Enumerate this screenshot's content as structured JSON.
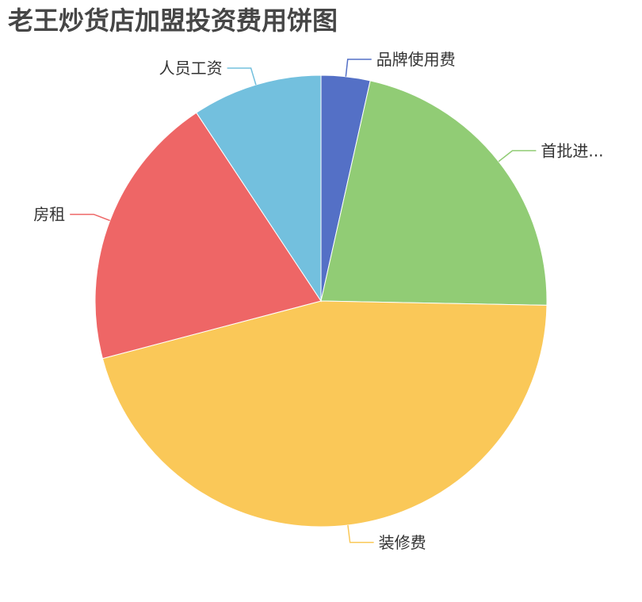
{
  "chart_data": {
    "type": "pie",
    "title": "老王炒货店加盟投资费用饼图",
    "categories": [
      "品牌使用费",
      "首批进...",
      "装修费",
      "房租",
      "人员工资"
    ],
    "values": [
      3.5,
      21.8,
      45.6,
      19.8,
      9.3
    ],
    "colors": [
      "#5470c6",
      "#91cc75",
      "#fac858",
      "#ee6666",
      "#73c0de"
    ],
    "start_angle_deg": 90,
    "direction": "clockwise",
    "legend": "none"
  }
}
